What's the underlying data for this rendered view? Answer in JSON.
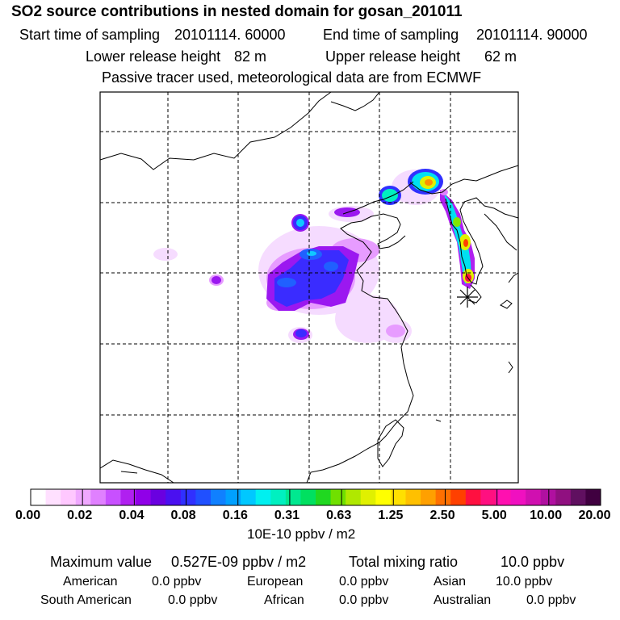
{
  "title": "SO2 source contributions in nested domain for gosan_201011",
  "start_label": "Start time of sampling",
  "start_value": "20101114. 60000",
  "end_label": "End time of sampling",
  "end_value": "20101114. 90000",
  "lower_label": "Lower release height",
  "lower_value": "82 m",
  "upper_label": "Upper release height",
  "upper_value": "62 m",
  "tracer_note": "Passive tracer used, meteorological data are from ECMWF",
  "colorbar": {
    "ticks": [
      "0.00",
      "0.02",
      "0.04",
      "0.08",
      "0.16",
      "0.31",
      "0.63",
      "1.25",
      "2.50",
      "5.00",
      "10.00",
      "20.00"
    ],
    "unit": "10E-10 ppbv / m2",
    "colors": [
      "#ffffff",
      "#ffe0ff",
      "#ffc8ff",
      "#f0a8ff",
      "#e080ff",
      "#c850ff",
      "#b020f0",
      "#9000e8",
      "#6a00e0",
      "#4a10f0",
      "#3030ff",
      "#2050ff",
      "#1080ff",
      "#00a0ff",
      "#00c8ff",
      "#00f0f0",
      "#00f0c0",
      "#00e890",
      "#00e060",
      "#20d820",
      "#70e000",
      "#b0e800",
      "#e0f000",
      "#ffff00",
      "#ffe000",
      "#ffc000",
      "#ffa000",
      "#ff7000",
      "#ff4000",
      "#ff1040",
      "#ff1080",
      "#ff10b0",
      "#f010c0",
      "#d010b0",
      "#b010a0",
      "#901080",
      "#601060",
      "#400040"
    ]
  },
  "max_label": "Maximum value",
  "max_value": "0.527E-09 ppbv / m2",
  "total_label": "Total mixing ratio",
  "total_value": "10.0 ppbv",
  "regions": [
    {
      "name": "American",
      "value": "0.0 ppbv"
    },
    {
      "name": "European",
      "value": "0.0 ppbv"
    },
    {
      "name": "Asian",
      "value": "10.0 ppbv"
    },
    {
      "name": "South American",
      "value": "0.0 ppbv"
    },
    {
      "name": "African",
      "value": "0.0 ppbv"
    },
    {
      "name": "Australian",
      "value": "0.0 ppbv"
    }
  ]
}
